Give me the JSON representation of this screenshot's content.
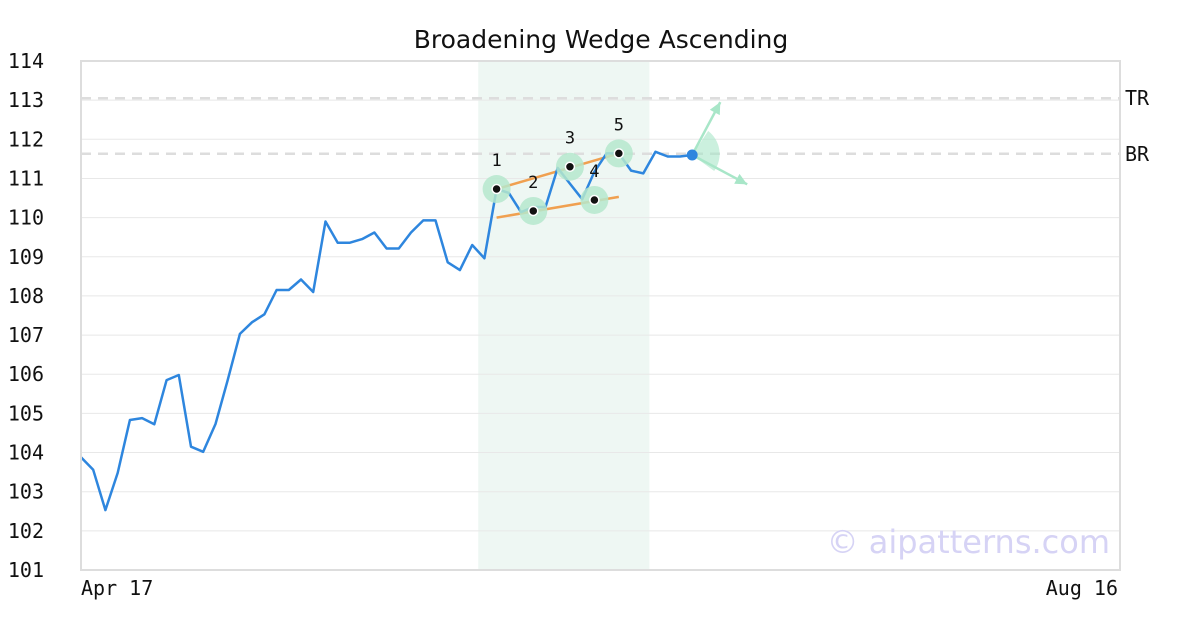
{
  "chart_data": {
    "type": "line",
    "title": "Broadening Wedge Ascending",
    "xlabel": "",
    "ylabel": "",
    "ylim": [
      101,
      114
    ],
    "yticks": [
      101,
      102,
      103,
      104,
      105,
      106,
      107,
      108,
      109,
      110,
      111,
      112,
      113,
      114
    ],
    "x_labels": {
      "start": "Apr 17",
      "end": "Aug 16"
    },
    "grid": true,
    "x": [
      0,
      1,
      2,
      3,
      4,
      5,
      6,
      7,
      8,
      9,
      10,
      11,
      12,
      13,
      14,
      15,
      16,
      17,
      18,
      19,
      20,
      21,
      22,
      23,
      24,
      25,
      26,
      27,
      28,
      29,
      30,
      31,
      32,
      33,
      34,
      35,
      36,
      37,
      38,
      39,
      40,
      41,
      42,
      43,
      44,
      45,
      46,
      47,
      48,
      49,
      50
    ],
    "x_max": 85,
    "series": [
      {
        "color": "#2e86de",
        "values": [
          103.88,
          103.56,
          102.53,
          103.48,
          104.83,
          104.88,
          104.72,
          105.85,
          105.98,
          104.15,
          104.02,
          104.73,
          105.85,
          107.03,
          107.33,
          107.53,
          108.15,
          108.15,
          108.42,
          108.1,
          109.9,
          109.36,
          109.36,
          109.45,
          109.62,
          109.21,
          109.21,
          109.62,
          109.93,
          109.93,
          108.86,
          108.66,
          109.3,
          108.96,
          110.73,
          110.63,
          110.14,
          110.27,
          110.27,
          111.27,
          110.87,
          110.47,
          111.17,
          111.64,
          111.64,
          111.2,
          111.13,
          111.68,
          111.56,
          111.56,
          111.6
        ]
      }
    ],
    "current_point": {
      "x": 50,
      "y": 111.6,
      "color": "#2e86de"
    },
    "highlight_range": {
      "x_start": 32.5,
      "x_end": 46.5,
      "color": "#eef7f3"
    },
    "levels": [
      {
        "label": "TR",
        "y": 113.05
      },
      {
        "label": "BR",
        "y": 111.63
      }
    ],
    "pattern_points": [
      {
        "label": "1",
        "x": 34,
        "y": 110.73
      },
      {
        "label": "2",
        "x": 37,
        "y": 110.17
      },
      {
        "label": "3",
        "x": 40,
        "y": 111.3
      },
      {
        "label": "4",
        "x": 42,
        "y": 110.45
      },
      {
        "label": "5",
        "x": 44,
        "y": 111.64
      }
    ],
    "trend_lines": [
      {
        "color": "#f0a050",
        "from": [
          34,
          110.73
        ],
        "to": [
          44,
          111.64
        ]
      },
      {
        "color": "#f0a050",
        "from": [
          34,
          110.0
        ],
        "to": [
          44,
          110.53
        ]
      }
    ],
    "projection": {
      "origin": [
        50,
        111.6
      ],
      "up": [
        52.3,
        112.95
      ],
      "down": [
        54.5,
        110.85
      ],
      "color": "#a8e6c8"
    },
    "watermark": "© aipatterns.com"
  }
}
